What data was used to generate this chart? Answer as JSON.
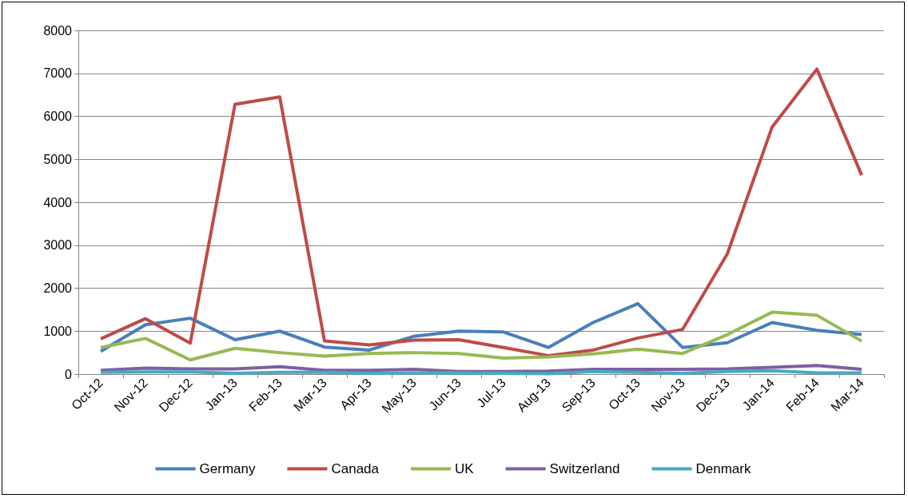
{
  "chart_data": {
    "type": "line",
    "categories": [
      "Oct-12",
      "Nov-12",
      "Dec-12",
      "Jan-13",
      "Feb-13",
      "Mar-13",
      "Apr-13",
      "May-13",
      "Jun-13",
      "Jul-13",
      "Aug-13",
      "Sep-13",
      "Oct-13",
      "Nov-13",
      "Dec-13",
      "Jan-14",
      "Feb-14",
      "Mar-14"
    ],
    "series": [
      {
        "name": "Germany",
        "color": "#4a7ebb",
        "values": [
          530,
          1150,
          1300,
          800,
          1000,
          630,
          560,
          880,
          1000,
          980,
          620,
          1200,
          1640,
          620,
          730,
          1200,
          1020,
          920
        ]
      },
      {
        "name": "Canada",
        "color": "#be4b48",
        "values": [
          820,
          1290,
          720,
          6280,
          6450,
          770,
          680,
          790,
          800,
          620,
          430,
          560,
          840,
          1040,
          2800,
          5750,
          7100,
          4630
        ]
      },
      {
        "name": "UK",
        "color": "#98b954",
        "values": [
          620,
          830,
          330,
          600,
          500,
          420,
          480,
          500,
          480,
          370,
          400,
          470,
          580,
          480,
          920,
          1440,
          1370,
          770
        ]
      },
      {
        "name": "Switzerland",
        "color": "#7d60a0",
        "values": [
          90,
          140,
          120,
          120,
          170,
          90,
          90,
          110,
          60,
          60,
          70,
          110,
          110,
          110,
          120,
          160,
          200,
          110
        ]
      },
      {
        "name": "Denmark",
        "color": "#46aac5",
        "values": [
          40,
          50,
          50,
          20,
          40,
          40,
          20,
          30,
          30,
          20,
          10,
          60,
          40,
          20,
          60,
          80,
          30,
          30
        ]
      }
    ],
    "ylim": [
      0,
      8000
    ],
    "yticks": [
      0,
      1000,
      2000,
      3000,
      4000,
      5000,
      6000,
      7000,
      8000
    ],
    "grid": "y",
    "legend": "bottom",
    "marker": "none",
    "line_style": "solid"
  }
}
